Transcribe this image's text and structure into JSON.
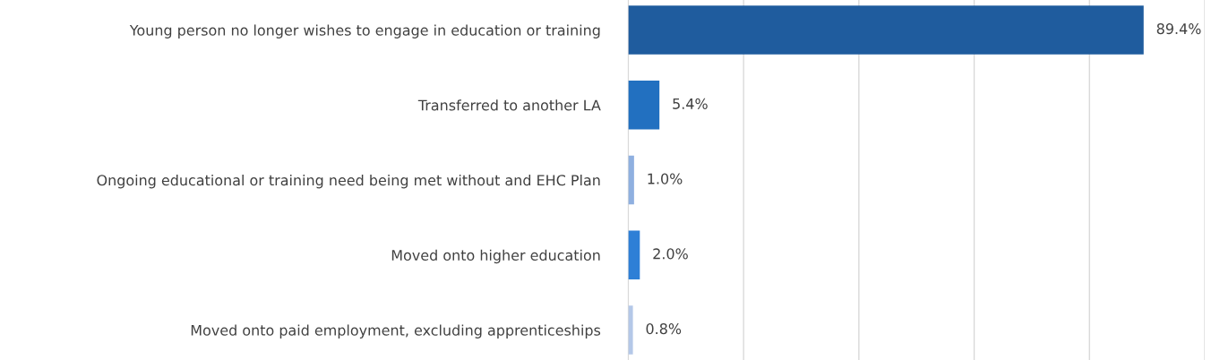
{
  "chart_data": {
    "type": "bar",
    "orientation": "horizontal",
    "categories": [
      "Young person no longer wishes to engage in education or training",
      "Transferred to another LA",
      "Ongoing educational or training need being met without and EHC Plan",
      "Moved onto higher education",
      "Moved onto paid employment, excluding apprenticeships"
    ],
    "values": [
      89.4,
      5.4,
      1.0,
      2.0,
      0.8
    ],
    "value_labels": [
      "89.4%",
      "5.4%",
      "1.0%",
      "2.0%",
      "0.8%"
    ],
    "colors": [
      "#1f5c9e",
      "#2270c0",
      "#8fb0e0",
      "#2e7fd6",
      "#b4c8e8"
    ],
    "xlim": [
      0,
      100
    ],
    "xticks": [
      {
        "value": 0,
        "label": null
      },
      {
        "value": 20,
        "label": null
      },
      {
        "value": 40,
        "label": null
      },
      {
        "value": 60,
        "label": null
      },
      {
        "value": 80,
        "label": null
      },
      {
        "value": 100,
        "label": null
      }
    ],
    "grid": "x",
    "tick_labels": "y",
    "legend": false
  }
}
